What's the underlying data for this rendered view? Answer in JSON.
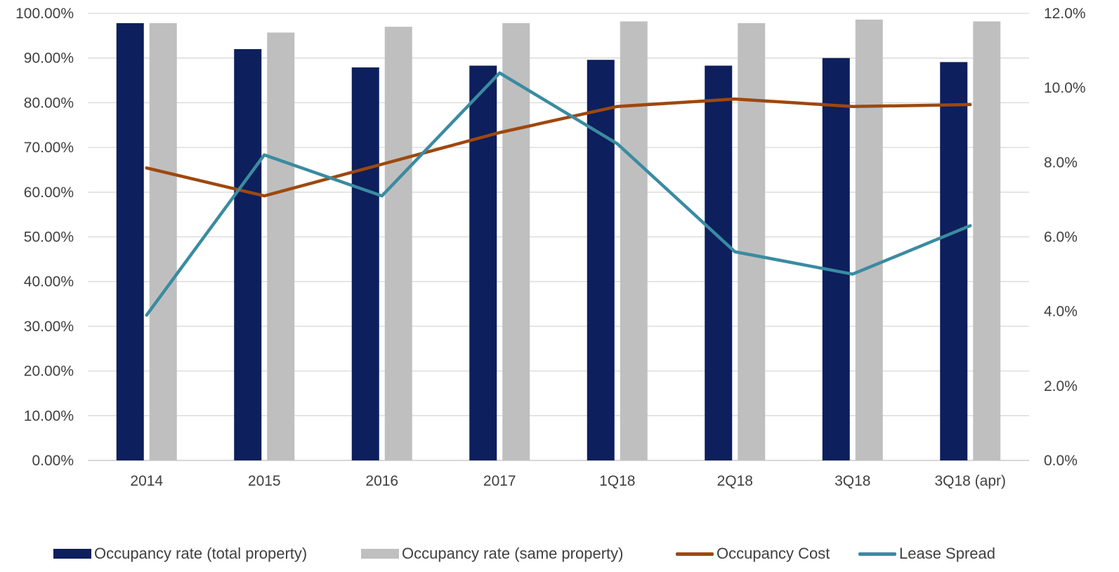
{
  "chart_data": {
    "type": "bar",
    "categories": [
      "2014",
      "2015",
      "2016",
      "2017",
      "1Q18",
      "2Q18",
      "3Q18",
      "3Q18 (apr)"
    ],
    "y_left": {
      "ylim": [
        0,
        100
      ],
      "ticks": [
        "0.00%",
        "10.00%",
        "20.00%",
        "30.00%",
        "40.00%",
        "50.00%",
        "60.00%",
        "70.00%",
        "80.00%",
        "90.00%",
        "100.00%"
      ]
    },
    "y_right": {
      "ylim": [
        0,
        12
      ],
      "ticks": [
        "0.0%",
        "2.0%",
        "4.0%",
        "6.0%",
        "8.0%",
        "10.0%",
        "12.0%"
      ]
    },
    "grid": true,
    "legend_position": "bottom",
    "series": [
      {
        "name": "Occupancy rate (total property)",
        "type": "bar",
        "axis": "left",
        "color": "#0d1f5c",
        "values": [
          97.8,
          92.0,
          87.9,
          88.3,
          89.6,
          88.3,
          90.0,
          89.1
        ]
      },
      {
        "name": "Occupancy rate (same property)",
        "type": "bar",
        "axis": "left",
        "color": "#bfbfbf",
        "values": [
          97.8,
          95.7,
          97.0,
          97.8,
          98.2,
          97.8,
          98.6,
          98.2
        ]
      },
      {
        "name": "Occupancy Cost",
        "type": "line",
        "axis": "right",
        "color": "#9e480e",
        "values": [
          7.85,
          7.1,
          7.95,
          8.8,
          9.5,
          9.7,
          9.5,
          9.55
        ]
      },
      {
        "name": "Lease Spread",
        "type": "line",
        "axis": "right",
        "color": "#3a8ba1",
        "values": [
          3.9,
          8.2,
          7.1,
          10.4,
          8.5,
          5.6,
          5.0,
          6.3
        ]
      }
    ]
  }
}
